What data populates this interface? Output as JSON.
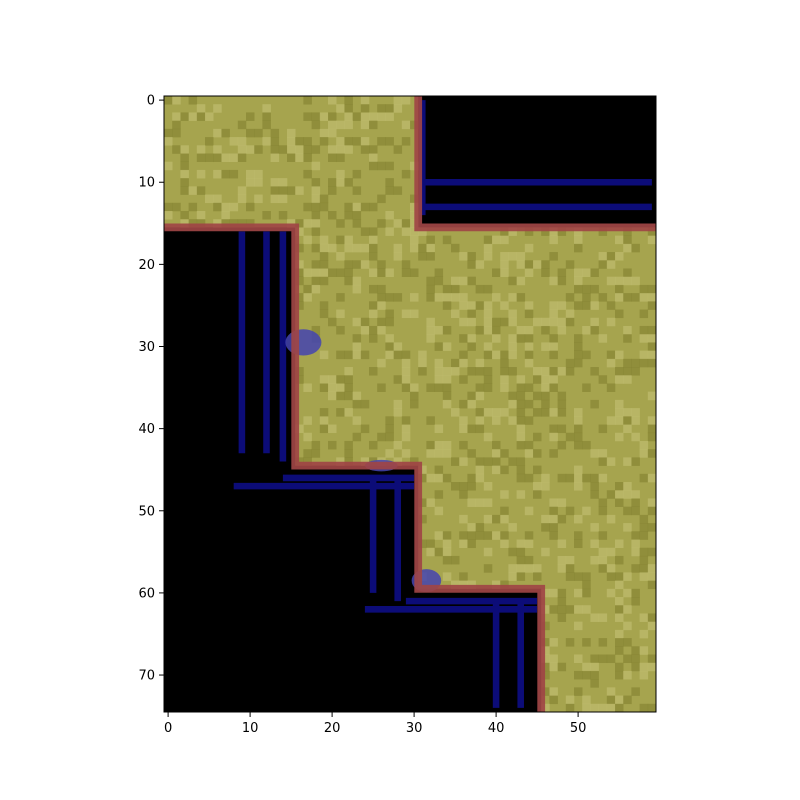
{
  "chart_data": {
    "type": "heatmap",
    "title": "",
    "xlabel": "",
    "ylabel": "",
    "grid": false,
    "origin": "upper",
    "columns": 60,
    "rows": 75,
    "xlim": [
      -0.5,
      59.5
    ],
    "ylim": [
      74.5,
      -0.5
    ],
    "x_ticks": [
      0,
      10,
      20,
      30,
      40,
      50
    ],
    "y_ticks": [
      0,
      10,
      20,
      30,
      40,
      50,
      60,
      70
    ],
    "x_tick_labels": [
      "0",
      "10",
      "20",
      "30",
      "40",
      "50"
    ],
    "y_tick_labels": [
      "0",
      "10",
      "20",
      "30",
      "40",
      "50",
      "60",
      "70"
    ],
    "colors": {
      "foreground": "#a6a44e",
      "foreground_dark": "#7e7c2c",
      "foreground_light": "#c4c274",
      "background": "#000000",
      "boundary": "#a04545",
      "interior_lines": "#0c0c78",
      "interior_blob": "#4444b0"
    },
    "regions": {
      "foreground_outline": [
        [
          30,
          0
        ],
        [
          30,
          16
        ],
        [
          59,
          16
        ],
        [
          59,
          74
        ],
        [
          45,
          74
        ],
        [
          45,
          60
        ],
        [
          30,
          60
        ],
        [
          30,
          45
        ],
        [
          15,
          45
        ],
        [
          15,
          15
        ],
        [
          0,
          15
        ],
        [
          0,
          0
        ]
      ],
      "background_top_right": [
        [
          31,
          0
        ],
        [
          59,
          0
        ],
        [
          59,
          15
        ],
        [
          31,
          15
        ]
      ],
      "background_bottom_left": [
        [
          0,
          16
        ],
        [
          15,
          16
        ],
        [
          15,
          46
        ],
        [
          30,
          46
        ],
        [
          30,
          61
        ],
        [
          45,
          61
        ],
        [
          45,
          74
        ],
        [
          0,
          74
        ]
      ]
    },
    "boundary_path": [
      [
        30.5,
        -0.5
      ],
      [
        30.5,
        15.5
      ],
      [
        59.5,
        15.5
      ]
    ],
    "boundary_path_2": [
      [
        -0.5,
        15.5
      ],
      [
        15.5,
        15.5
      ],
      [
        15.5,
        44.5
      ],
      [
        30.5,
        44.5
      ],
      [
        30.5,
        59.5
      ],
      [
        45.5,
        59.5
      ],
      [
        45.5,
        74.5
      ]
    ],
    "interior_segments": [
      {
        "x1": 31,
        "y1": 10,
        "x2": 59,
        "y2": 10
      },
      {
        "x1": 31,
        "y1": 13,
        "x2": 59,
        "y2": 13
      },
      {
        "x1": 31,
        "y1": 0,
        "x2": 31,
        "y2": 14
      },
      {
        "x1": 9,
        "y1": 16,
        "x2": 9,
        "y2": 43
      },
      {
        "x1": 12,
        "y1": 16,
        "x2": 12,
        "y2": 43
      },
      {
        "x1": 14,
        "y1": 16,
        "x2": 14,
        "y2": 44
      },
      {
        "x1": 8,
        "y1": 47,
        "x2": 30,
        "y2": 47
      },
      {
        "x1": 14,
        "y1": 46,
        "x2": 30,
        "y2": 46
      },
      {
        "x1": 25,
        "y1": 46,
        "x2": 25,
        "y2": 60
      },
      {
        "x1": 28,
        "y1": 46,
        "x2": 28,
        "y2": 61
      },
      {
        "x1": 24,
        "y1": 62,
        "x2": 45,
        "y2": 62
      },
      {
        "x1": 29,
        "y1": 61,
        "x2": 45,
        "y2": 61
      },
      {
        "x1": 40,
        "y1": 61,
        "x2": 40,
        "y2": 74
      },
      {
        "x1": 43,
        "y1": 61,
        "x2": 43,
        "y2": 74
      }
    ],
    "interior_blobs": [
      {
        "x": 16.5,
        "y": 29.5,
        "rx": 2.2,
        "ry": 1.6
      },
      {
        "x": 26,
        "y": 44.5,
        "rx": 2.0,
        "ry": 0.7
      },
      {
        "x": 31.5,
        "y": 58.5,
        "rx": 1.8,
        "ry": 1.4
      }
    ]
  }
}
